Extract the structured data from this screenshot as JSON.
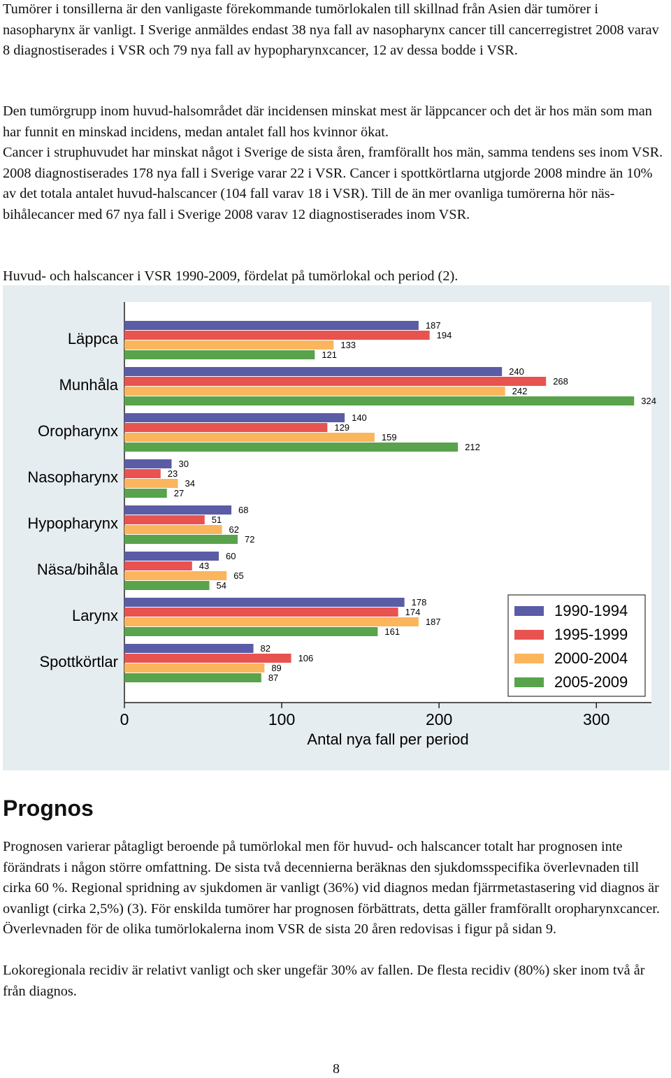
{
  "paragraphs_top": [
    "Tumörer i tonsillerna är den vanligaste förekommande tumörlokalen till skillnad från Asien där tumörer i nasopharynx är vanligt. I Sverige anmäldes endast 38 nya fall av nasopharynx cancer till cancerregistret 2008 varav 8 diagnostiserades i VSR och 79 nya fall av hypopharynxcancer, 12 av dessa bodde i VSR.",
    "Den tumörgrupp inom huvud-halsområdet där incidensen minskat mest är läppcancer och det är hos män som man har funnit en minskad incidens, medan antalet fall hos kvinnor ökat.",
    "Cancer i struphuvudet har minskat något i Sverige de sista åren, framförallt hos män, samma tendens ses inom VSR.  2008 diagnostiserades 178 nya fall i Sverige varar 22 i VSR. Cancer i spottkörtlarna utgjorde 2008 mindre än 10% av det totala antalet huvud-halscancer (104 fall varav 18 i VSR). Till de än mer ovanliga tumörerna hör näs-bihålecancer med 67 nya fall i Sverige 2008 varav 12 diagnostiserades inom VSR."
  ],
  "caption": "Huvud- och halscancer i VSR 1990-2009, fördelat på tumörlokal och period (2).",
  "chart_data": {
    "type": "hbar",
    "categories": [
      "Läppca",
      "Munhåla",
      "Oropharynx",
      "Nasopharynx",
      "Hypopharynx",
      "Näsa/bihåla",
      "Larynx",
      "Spottkörtlar"
    ],
    "series": [
      {
        "name": "1990-1994",
        "color": "#5b5ca6",
        "values": [
          187,
          240,
          140,
          30,
          68,
          60,
          178,
          82
        ]
      },
      {
        "name": "1995-1999",
        "color": "#e85350",
        "values": [
          194,
          268,
          129,
          23,
          51,
          43,
          174,
          106
        ]
      },
      {
        "name": "2000-2004",
        "color": "#fbb55c",
        "values": [
          133,
          242,
          159,
          34,
          62,
          65,
          187,
          89
        ]
      },
      {
        "name": "2005-2009",
        "color": "#58a34b",
        "values": [
          121,
          324,
          212,
          27,
          72,
          54,
          161,
          87
        ]
      }
    ],
    "xlim": [
      0,
      335
    ],
    "xticks": [
      0,
      100,
      200,
      300
    ],
    "xlabel": "Antal nya fall per period",
    "legend": "lower-right"
  },
  "heading": "Prognos",
  "paragraphs_bottom": [
    "Prognosen varierar påtagligt beroende på tumörlokal men för huvud- och halscancer totalt har prognosen inte förändrats i någon större omfattning. De sista två decennierna beräknas den sjukdomsspecifika överlevnaden till cirka 60 %. Regional spridning av sjukdomen är vanligt (36%) vid diagnos medan fjärrmetastasering vid diagnos är ovanligt (cirka 2,5%) (3). För enskilda tumörer har prognosen förbättrats, detta gäller framförallt oropharynxcancer. Överlevnaden för de olika tumörlokalerna inom VSR de sista 20 åren redovisas i figur på sidan 9.",
    "Lokoregionala recidiv är relativt vanligt och sker ungefär 30% av fallen. De flesta recidiv (80%) sker inom två år från diagnos."
  ],
  "page_number": "8"
}
